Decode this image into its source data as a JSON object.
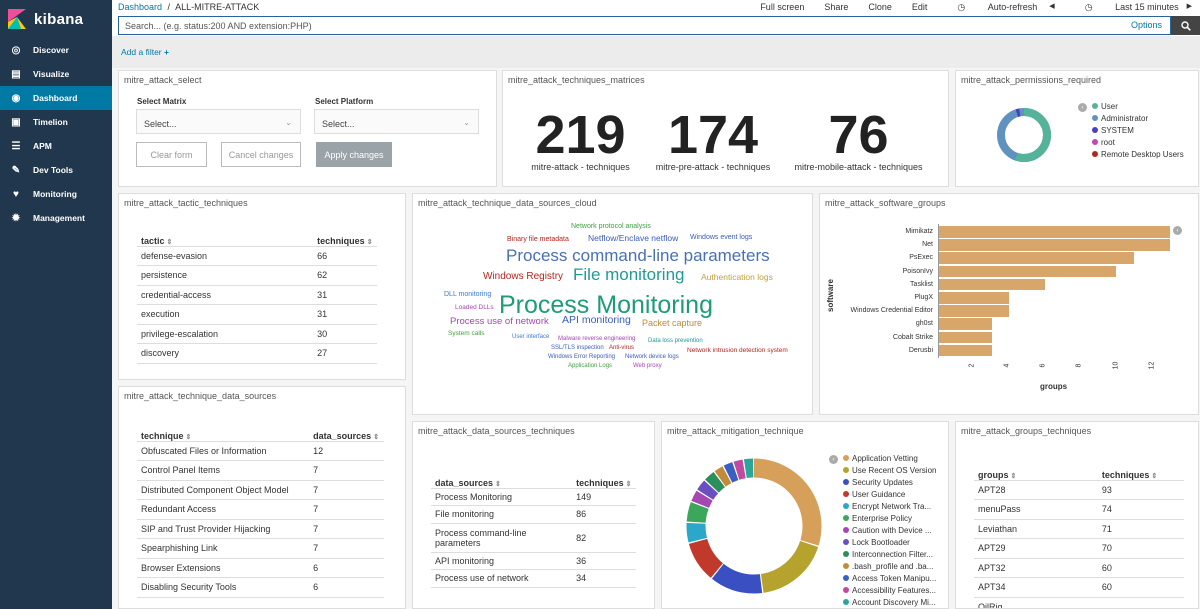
{
  "app": {
    "name": "kibana"
  },
  "nav": [
    {
      "label": "Discover",
      "icon": "compass-icon"
    },
    {
      "label": "Visualize",
      "icon": "bar-chart-icon"
    },
    {
      "label": "Dashboard",
      "icon": "dashboard-icon",
      "active": true
    },
    {
      "label": "Timelion",
      "icon": "timelion-icon"
    },
    {
      "label": "APM",
      "icon": "apm-icon"
    },
    {
      "label": "Dev Tools",
      "icon": "wrench-icon"
    },
    {
      "label": "Monitoring",
      "icon": "heartbeat-icon"
    },
    {
      "label": "Management",
      "icon": "gear-icon"
    }
  ],
  "breadcrumb": {
    "root": "Dashboard",
    "sep": "/",
    "current": "ALL-MITRE-ATTACK"
  },
  "topmenu": {
    "fullscreen": "Full screen",
    "share": "Share",
    "clone": "Clone",
    "edit": "Edit",
    "autorefresh": "Auto-refresh",
    "timerange": "Last 15 minutes",
    "prev": "◀",
    "next": "▶"
  },
  "search": {
    "placeholder": "Search... (e.g. status:200 AND extension:PHP)",
    "options": "Options"
  },
  "filter": {
    "add": "Add a filter"
  },
  "select_panel": {
    "title": "mitre_attack_select",
    "matrix_label": "Select Matrix",
    "matrix_value": "Select...",
    "platform_label": "Select Platform",
    "platform_value": "Select...",
    "clear": "Clear form",
    "cancel": "Cancel changes",
    "apply": "Apply changes"
  },
  "matrices": {
    "title": "mitre_attack_techniques_matrices",
    "metrics": [
      {
        "value": "219",
        "label": "mitre-attack - techniques"
      },
      {
        "value": "174",
        "label": "mitre-pre-attack - techniques"
      },
      {
        "value": "76",
        "label": "mitre-mobile-attack - techniques"
      }
    ]
  },
  "permissions": {
    "title": "mitre_attack_permissions_required",
    "legend": [
      {
        "label": "User",
        "color": "#54b399"
      },
      {
        "label": "Administrator",
        "color": "#6092c0"
      },
      {
        "label": "SYSTEM",
        "color": "#4a3ec2"
      },
      {
        "label": "root",
        "color": "#c348b3"
      },
      {
        "label": "Remote Desktop Users",
        "color": "#b3261e"
      }
    ]
  },
  "tactic": {
    "title": "mitre_attack_tactic_techniques",
    "headers": [
      "tactic",
      "techniques"
    ],
    "rows": [
      [
        "defense-evasion",
        "66"
      ],
      [
        "persistence",
        "62"
      ],
      [
        "credential-access",
        "31"
      ],
      [
        "execution",
        "31"
      ],
      [
        "privilege-escalation",
        "30"
      ],
      [
        "discovery",
        "27"
      ]
    ]
  },
  "cloud": {
    "title": "mitre_attack_technique_data_sources_cloud",
    "words": [
      {
        "t": "Network protocol analysis",
        "c": "#3f9f3f"
      },
      {
        "t": "Binary file metadata",
        "c": "#b3261e"
      },
      {
        "t": "Netflow/Enclave netflow",
        "c": "#3b5bbd"
      },
      {
        "t": "Windows event logs",
        "c": "#3b5bbd"
      },
      {
        "t": "Process command-line parameters",
        "c": "#4a6fb5"
      },
      {
        "t": "Windows Registry",
        "c": "#b3261e"
      },
      {
        "t": "File monitoring",
        "c": "#1e9b97"
      },
      {
        "t": "Authentication logs",
        "c": "#c2a03a"
      },
      {
        "t": "DLL monitoring",
        "c": "#3b7bd5"
      },
      {
        "t": "Process Monitoring",
        "c": "#1e9b77"
      },
      {
        "t": "Loaded DLLs",
        "c": "#a347b3"
      },
      {
        "t": "Process use of network",
        "c": "#a347b3"
      },
      {
        "t": "API monitoring",
        "c": "#3b5bbd"
      },
      {
        "t": "Packet capture",
        "c": "#c28a3a"
      },
      {
        "t": "System calls",
        "c": "#3f9f3f"
      },
      {
        "t": "User interface",
        "c": "#3b7bd5"
      },
      {
        "t": "Malware reverse engineering",
        "c": "#a347b3"
      },
      {
        "t": "SSL/TLS inspection",
        "c": "#3b5bbd"
      },
      {
        "t": "Anti-virus",
        "c": "#b3261e"
      },
      {
        "t": "Data loss prevention",
        "c": "#1e9b97"
      },
      {
        "t": "Windows Error Reporting",
        "c": "#3b5bbd"
      },
      {
        "t": "Network device logs",
        "c": "#3b5bbd"
      },
      {
        "t": "Network intrusion detection system",
        "c": "#b3261e"
      },
      {
        "t": "Application Logs",
        "c": "#3f9f3f"
      },
      {
        "t": "Web proxy",
        "c": "#a347b3"
      }
    ]
  },
  "software": {
    "title": "mitre_attack_software_groups",
    "chart_data": {
      "type": "bar",
      "orientation": "horizontal",
      "categories": [
        "Mimikatz",
        "Net",
        "PsExec",
        "PoisonIvy",
        "Tasklist",
        "PlugX",
        "Windows Credential Editor",
        "gh0st",
        "Cobalt Strike",
        "Derusbi"
      ],
      "values": [
        13,
        13,
        11,
        10,
        6,
        4,
        4,
        3,
        3,
        3
      ],
      "xlabel": "groups",
      "ylabel": "software",
      "xticks": [
        "2",
        "4",
        "6",
        "8",
        "10",
        "12"
      ],
      "xlim": [
        0,
        13
      ],
      "color": "#d8a56b"
    }
  },
  "datasources": {
    "title": "mitre_attack_technique_data_sources",
    "headers": [
      "technique",
      "data_sources"
    ],
    "rows": [
      [
        "Obfuscated Files or Information",
        "12"
      ],
      [
        "Control Panel Items",
        "7"
      ],
      [
        "Distributed Component Object Model",
        "7"
      ],
      [
        "Redundant Access",
        "7"
      ],
      [
        "SIP and Trust Provider Hijacking",
        "7"
      ],
      [
        "Spearphishing Link",
        "7"
      ],
      [
        "Browser Extensions",
        "6"
      ],
      [
        "Disabling Security Tools",
        "6"
      ]
    ]
  },
  "ds_techniques": {
    "title": "mitre_attack_data_sources_techniques",
    "headers": [
      "data_sources",
      "techniques"
    ],
    "rows": [
      [
        "Process Monitoring",
        "149"
      ],
      [
        "File monitoring",
        "86"
      ],
      [
        "Process command-line parameters",
        "82"
      ],
      [
        "API monitoring",
        "36"
      ],
      [
        "Process use of network",
        "34"
      ]
    ]
  },
  "mitigation": {
    "title": "mitre_attack_mitigation_technique",
    "legend": [
      {
        "label": "Application Vetting",
        "color": "#d6a05a"
      },
      {
        "label": "Use Recent OS Version",
        "color": "#b5a32e"
      },
      {
        "label": "Security Updates",
        "color": "#3a4fc2"
      },
      {
        "label": "User Guidance",
        "color": "#c0392b"
      },
      {
        "label": "Encrypt Network Tra...",
        "color": "#2aa7c9"
      },
      {
        "label": "Enterprise Policy",
        "color": "#3ca65a"
      },
      {
        "label": "Caution with Device ...",
        "color": "#a347b3"
      },
      {
        "label": "Lock Bootloader",
        "color": "#6b4ec2"
      },
      {
        "label": "Interconnection Filter...",
        "color": "#2a8f5a"
      },
      {
        "label": ".bash_profile and .ba...",
        "color": "#c28a3a"
      },
      {
        "label": "Access Token Manipu...",
        "color": "#3a5fc2"
      },
      {
        "label": "Accessibility Features...",
        "color": "#c3489f"
      },
      {
        "label": "Account Discovery Mi...",
        "color": "#2aa79a"
      }
    ]
  },
  "groups": {
    "title": "mitre_attack_groups_techniques",
    "headers": [
      "groups",
      "techniques"
    ],
    "rows": [
      [
        "APT28",
        "93"
      ],
      [
        "menuPass",
        "74"
      ],
      [
        "Leviathan",
        "71"
      ],
      [
        "APT29",
        "70"
      ],
      [
        "APT32",
        "60"
      ],
      [
        "APT34",
        "60"
      ],
      [
        "OilRig",
        ""
      ]
    ]
  }
}
